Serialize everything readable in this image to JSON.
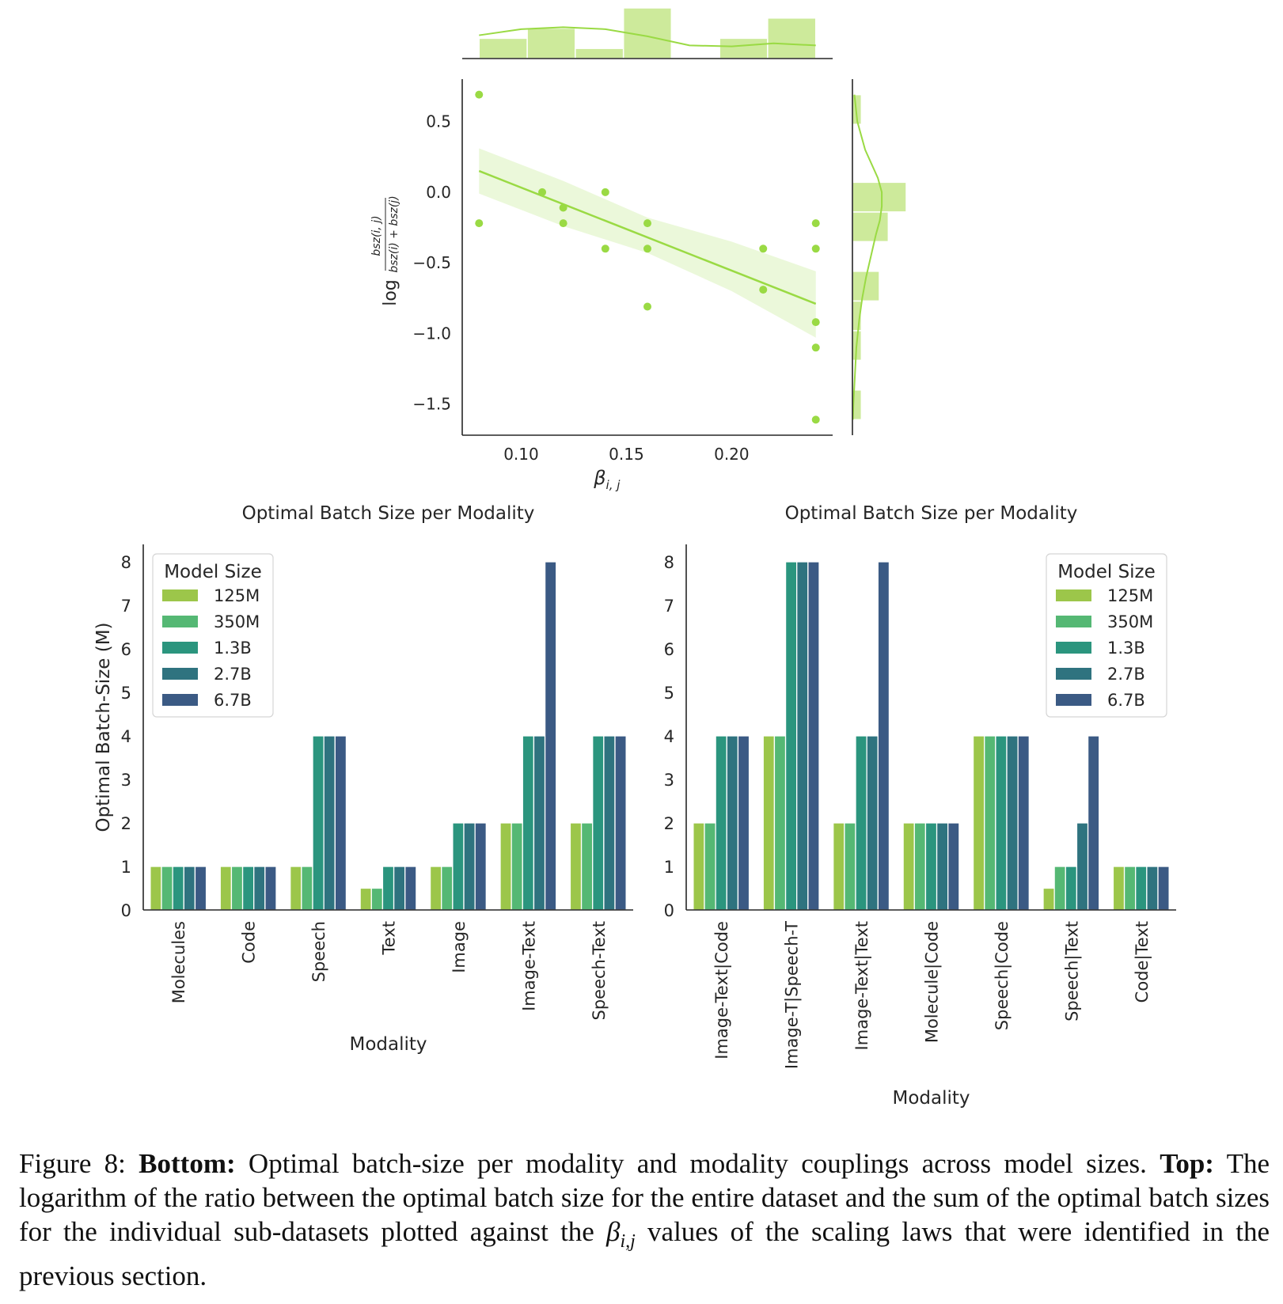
{
  "colors": {
    "scatter": "#9ada44",
    "scatter_band": "#9ada4433",
    "hist_fill": "#cdea9b",
    "axis": "#262626",
    "model_sizes": [
      "#9cc64a",
      "#55b874",
      "#2b957e",
      "#2f737f",
      "#3b5a84"
    ]
  },
  "chart_data": [
    {
      "id": "scatter",
      "type": "scatter",
      "title": "",
      "xlabel": "β_{i,j}",
      "ylabel": "log bsz(i,j) / (bsz(i) + bsz(j))",
      "ylabel_prefix": "log",
      "ylabel_num": "bsz(i, j)",
      "ylabel_den": "bsz(i) + bsz(j)",
      "xlim": [
        0.072,
        0.248
      ],
      "ylim": [
        -1.72,
        0.8
      ],
      "x_ticks": [
        0.1,
        0.15,
        0.2
      ],
      "x_tick_labels": [
        "0.10",
        "0.15",
        "0.20"
      ],
      "y_ticks": [
        0.5,
        0.0,
        -0.5,
        -1.0,
        -1.5
      ],
      "y_tick_labels": [
        "0.5",
        "0.0",
        "−0.5",
        "−1.0",
        "−1.5"
      ],
      "points": [
        {
          "x": 0.08,
          "y": 0.69
        },
        {
          "x": 0.08,
          "y": -0.22
        },
        {
          "x": 0.11,
          "y": 0.0
        },
        {
          "x": 0.12,
          "y": -0.11
        },
        {
          "x": 0.12,
          "y": -0.22
        },
        {
          "x": 0.14,
          "y": 0.0
        },
        {
          "x": 0.14,
          "y": -0.4
        },
        {
          "x": 0.16,
          "y": -0.22
        },
        {
          "x": 0.16,
          "y": -0.4
        },
        {
          "x": 0.16,
          "y": -0.81
        },
        {
          "x": 0.215,
          "y": -0.4
        },
        {
          "x": 0.215,
          "y": -0.69
        },
        {
          "x": 0.24,
          "y": -0.22
        },
        {
          "x": 0.24,
          "y": -0.4
        },
        {
          "x": 0.24,
          "y": -0.92
        },
        {
          "x": 0.24,
          "y": -1.1
        },
        {
          "x": 0.24,
          "y": -1.61
        }
      ],
      "regression": {
        "x": [
          0.08,
          0.24
        ],
        "y": [
          0.15,
          -0.79
        ]
      },
      "confidence_band": {
        "x": [
          0.08,
          0.12,
          0.16,
          0.2,
          0.24
        ],
        "upper": [
          0.31,
          0.08,
          -0.18,
          -0.35,
          -0.56
        ],
        "lower": [
          -0.01,
          -0.24,
          -0.43,
          -0.7,
          -1.03
        ]
      },
      "marginal_x_hist": {
        "bin_edges": [
          0.08,
          0.1029,
          0.1257,
          0.1486,
          0.1714,
          0.1943,
          0.2171,
          0.24
        ],
        "counts": [
          2,
          3,
          1,
          5,
          0,
          2,
          4
        ]
      },
      "marginal_x_kde": {
        "x": [
          0.08,
          0.1,
          0.12,
          0.14,
          0.16,
          0.18,
          0.2,
          0.22,
          0.24
        ],
        "density": [
          2.3,
          2.9,
          3.1,
          2.9,
          2.2,
          1.3,
          1.2,
          1.5,
          1.3
        ]
      },
      "marginal_y_hist": {
        "bin_edges": [
          -1.61,
          -1.4,
          -1.19,
          -0.98,
          -0.77,
          -0.56,
          -0.35,
          -0.14,
          0.07,
          0.28,
          0.48,
          0.69
        ],
        "counts": [
          1,
          0,
          1,
          1,
          3,
          0,
          4,
          6,
          0,
          0,
          1
        ]
      },
      "marginal_y_kde": {
        "y": [
          0.69,
          0.5,
          0.3,
          0.1,
          0.0,
          -0.1,
          -0.2,
          -0.3,
          -0.45,
          -0.6,
          -0.75,
          -0.9,
          -1.1,
          -1.3,
          -1.5,
          -1.61
        ],
        "density": [
          0.2,
          0.5,
          1.3,
          2.6,
          3.0,
          3.0,
          2.8,
          2.4,
          1.9,
          1.4,
          1.0,
          0.7,
          0.4,
          0.25,
          0.1,
          0.05
        ]
      }
    },
    {
      "id": "bars-left",
      "type": "bar",
      "title": "Optimal Batch Size per Modality",
      "xlabel": "Modality",
      "ylabel": "Optimal Batch-Size (M)",
      "ylim": [
        0,
        8.4
      ],
      "y_ticks": [
        0,
        1,
        2,
        3,
        4,
        5,
        6,
        7,
        8
      ],
      "legend": {
        "title": "Model Size",
        "placement": "top-left"
      },
      "categories": [
        "Molecules",
        "Code",
        "Speech",
        "Text",
        "Image",
        "Image-Text",
        "Speech-Text"
      ],
      "series": [
        {
          "name": "125M",
          "values": [
            1,
            1,
            1,
            0.5,
            1,
            2,
            2
          ]
        },
        {
          "name": "350M",
          "values": [
            1,
            1,
            1,
            0.5,
            1,
            2,
            2
          ]
        },
        {
          "name": "1.3B",
          "values": [
            1,
            1,
            4,
            1,
            2,
            4,
            4
          ]
        },
        {
          "name": "2.7B",
          "values": [
            1,
            1,
            4,
            1,
            2,
            4,
            4
          ]
        },
        {
          "name": "6.7B",
          "values": [
            1,
            1,
            4,
            1,
            2,
            8,
            4
          ]
        }
      ]
    },
    {
      "id": "bars-right",
      "type": "bar",
      "title": "Optimal Batch Size per Modality",
      "xlabel": "Modality",
      "ylabel": "",
      "ylim": [
        0,
        8.4
      ],
      "y_ticks": [
        0,
        1,
        2,
        3,
        4,
        5,
        6,
        7,
        8
      ],
      "legend": {
        "title": "Model Size",
        "placement": "top-right"
      },
      "categories": [
        "Image-Text|Code",
        "Image-T|Speech-T",
        "Image-Text|Text",
        "Molecule|Code",
        "Speech|Code",
        "Speech|Text",
        "Code|Text"
      ],
      "series": [
        {
          "name": "125M",
          "values": [
            2,
            4,
            2,
            2,
            4,
            0.5,
            1
          ]
        },
        {
          "name": "350M",
          "values": [
            2,
            4,
            2,
            2,
            4,
            1,
            1
          ]
        },
        {
          "name": "1.3B",
          "values": [
            4,
            8,
            4,
            2,
            4,
            1,
            1
          ]
        },
        {
          "name": "2.7B",
          "values": [
            4,
            8,
            4,
            2,
            4,
            2,
            1
          ]
        },
        {
          "name": "6.7B",
          "values": [
            4,
            8,
            8,
            2,
            4,
            4,
            1
          ]
        }
      ]
    }
  ],
  "caption": {
    "figure_label": "Figure 8:",
    "bottom_label": "Bottom:",
    "bottom_text": "Optimal batch-size per modality and modality couplings across model sizes.",
    "top_label": "Top:",
    "top_text_1": "The logarithm of the ratio between the optimal batch size for the entire dataset and the sum of the optimal batch sizes for the individual sub-datasets plotted against the",
    "beta_symbol": "β",
    "beta_subscript": "i,j",
    "top_text_2": "values of the scaling laws that were identified in the previous section."
  }
}
